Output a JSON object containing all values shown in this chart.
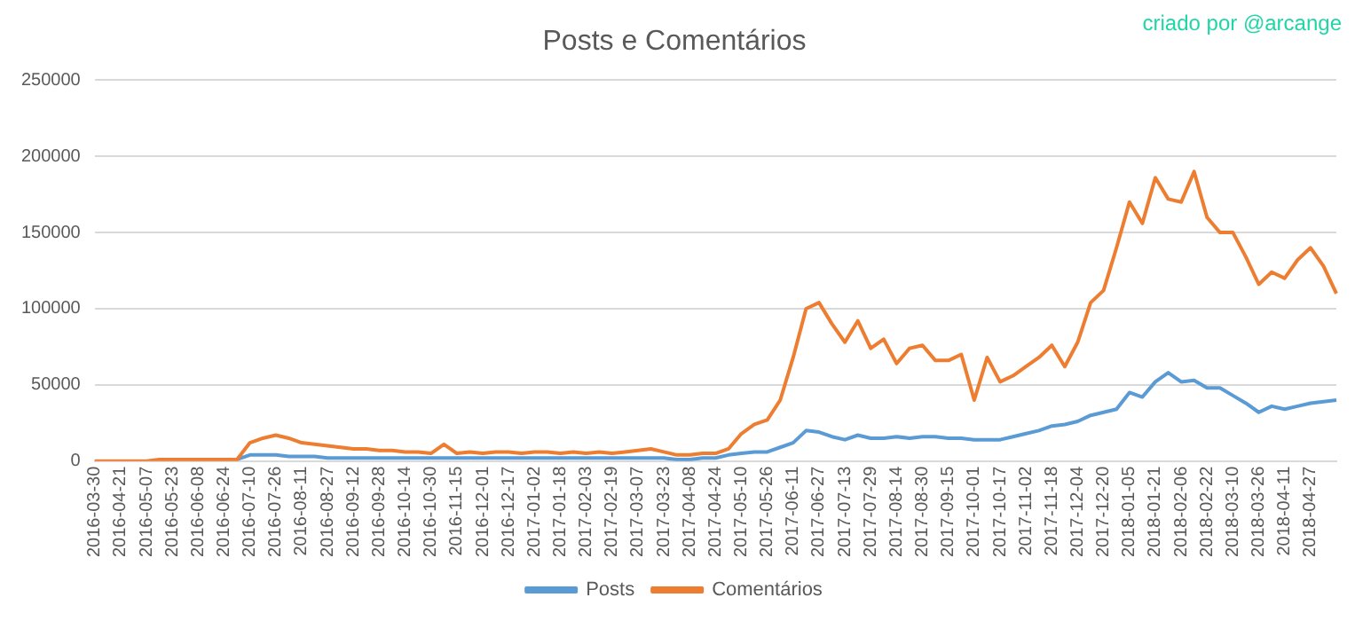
{
  "chart_data": {
    "type": "line",
    "title": "Posts e Comentários",
    "annotations": [
      "criado por @arcange"
    ],
    "categories": [
      "2016-03-30",
      null,
      "2016-04-21",
      null,
      "2016-05-07",
      null,
      "2016-05-23",
      null,
      "2016-06-08",
      null,
      "2016-06-24",
      null,
      "2016-07-10",
      null,
      "2016-07-26",
      null,
      "2016-08-11",
      null,
      "2016-08-27",
      null,
      "2016-09-12",
      null,
      "2016-09-28",
      null,
      "2016-10-14",
      null,
      "2016-10-30",
      null,
      "2016-11-15",
      null,
      "2016-12-01",
      null,
      "2016-12-17",
      null,
      "2017-01-02",
      null,
      "2017-01-18",
      null,
      "2017-02-03",
      null,
      "2017-02-19",
      null,
      "2017-03-07",
      null,
      "2017-03-23",
      null,
      "2017-04-08",
      null,
      "2017-04-24",
      null,
      "2017-05-10",
      null,
      "2017-05-26",
      null,
      "2017-06-11",
      null,
      "2017-06-27",
      null,
      "2017-07-13",
      null,
      "2017-07-29",
      null,
      "2017-08-14",
      null,
      "2017-08-30",
      null,
      "2017-09-15",
      null,
      "2017-10-01",
      null,
      "2017-10-17",
      null,
      "2017-11-02",
      null,
      "2017-11-18",
      null,
      "2017-12-04",
      null,
      "2017-12-20",
      null,
      "2018-01-05",
      null,
      "2018-01-21",
      null,
      "2018-02-06",
      null,
      "2018-02-22",
      null,
      "2018-03-10",
      null,
      "2018-03-26",
      null,
      "2018-04-11",
      null,
      "2018-04-27",
      null,
      null
    ],
    "series": [
      {
        "name": "Posts",
        "color": "#5b9bd5",
        "values": [
          null,
          null,
          null,
          null,
          null,
          null,
          null,
          null,
          null,
          null,
          null,
          1000,
          4000,
          4000,
          4000,
          3000,
          3000,
          3000,
          2000,
          2000,
          2000,
          2000,
          2000,
          2000,
          2000,
          2000,
          2000,
          2000,
          2000,
          2000,
          2000,
          2000,
          2000,
          2000,
          2000,
          2000,
          2000,
          2000,
          2000,
          2000,
          2000,
          2000,
          2000,
          2000,
          2000,
          1000,
          1000,
          2000,
          2000,
          4000,
          5000,
          6000,
          6000,
          9000,
          12000,
          20000,
          19000,
          16000,
          14000,
          17000,
          15000,
          15000,
          16000,
          15000,
          16000,
          16000,
          15000,
          15000,
          14000,
          14000,
          14000,
          16000,
          18000,
          20000,
          23000,
          24000,
          26000,
          30000,
          32000,
          34000,
          45000,
          42000,
          52000,
          58000,
          52000,
          53000,
          48000,
          48000,
          43000,
          38000,
          32000,
          36000,
          34000,
          36000,
          38000,
          39000,
          40000
        ]
      },
      {
        "name": "Comentários",
        "color": "#ed7d31",
        "values": [
          0,
          0,
          0,
          0,
          0,
          1000,
          1000,
          1000,
          1000,
          1000,
          1000,
          1000,
          12000,
          15000,
          17000,
          15000,
          12000,
          11000,
          10000,
          9000,
          8000,
          8000,
          7000,
          7000,
          6000,
          6000,
          5000,
          11000,
          5000,
          6000,
          5000,
          6000,
          6000,
          5000,
          6000,
          6000,
          5000,
          6000,
          5000,
          6000,
          5000,
          6000,
          7000,
          8000,
          6000,
          4000,
          4000,
          5000,
          5000,
          8000,
          18000,
          24000,
          27000,
          40000,
          68000,
          100000,
          104000,
          90000,
          78000,
          92000,
          74000,
          80000,
          64000,
          74000,
          76000,
          66000,
          66000,
          70000,
          40000,
          68000,
          52000,
          56000,
          62000,
          68000,
          76000,
          62000,
          78000,
          104000,
          112000,
          140000,
          170000,
          156000,
          186000,
          172000,
          170000,
          190000,
          160000,
          150000,
          150000,
          134000,
          116000,
          124000,
          120000,
          132000,
          140000,
          128000,
          110000
        ]
      }
    ],
    "ylim": [
      0,
      250000
    ],
    "yticks": [
      0,
      50000,
      100000,
      150000,
      200000,
      250000
    ],
    "grid": "y",
    "legend": "bottom",
    "marker": "none",
    "line_style": "solid"
  }
}
